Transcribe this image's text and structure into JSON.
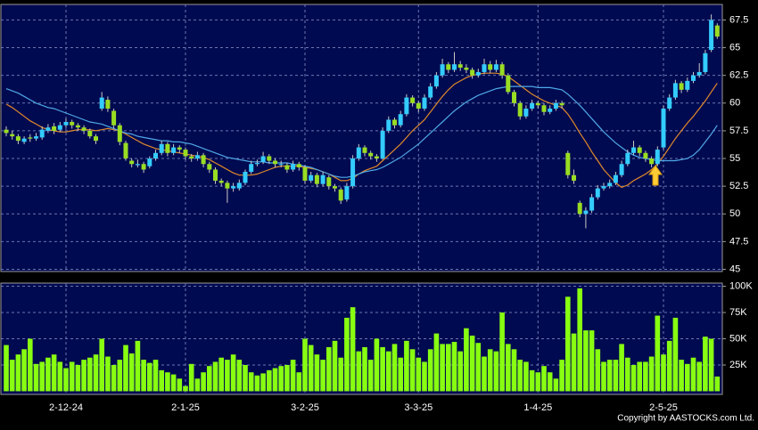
{
  "chart_data": [
    {
      "type": "candlestick",
      "up_color": "#33ccff",
      "down_color": "#99dd22",
      "grid": true,
      "ylim": [
        44.8,
        68.9
      ],
      "yticks": [
        45,
        47.5,
        50,
        52.5,
        55,
        57.5,
        60,
        62.5,
        65,
        67.5
      ],
      "categories": [
        null,
        null,
        null,
        null,
        null,
        null,
        null,
        null,
        null,
        null,
        "2-12-24",
        null,
        null,
        null,
        null,
        null,
        null,
        null,
        null,
        null,
        null,
        null,
        null,
        null,
        null,
        null,
        null,
        null,
        null,
        null,
        "2-1-25",
        null,
        null,
        null,
        null,
        null,
        null,
        null,
        null,
        null,
        null,
        null,
        null,
        null,
        null,
        null,
        null,
        null,
        null,
        null,
        "3-2-25",
        null,
        null,
        null,
        null,
        null,
        null,
        null,
        null,
        null,
        null,
        null,
        null,
        null,
        null,
        null,
        null,
        null,
        null,
        "3-3-25",
        null,
        null,
        null,
        null,
        null,
        null,
        null,
        null,
        null,
        null,
        null,
        null,
        null,
        null,
        null,
        null,
        null,
        null,
        null,
        "1-4-25",
        null,
        null,
        null,
        null,
        null,
        null,
        null,
        null,
        null,
        null,
        null,
        null,
        null,
        null,
        null,
        null,
        null,
        null,
        null,
        null,
        "2-5-25",
        null,
        null,
        null,
        null,
        null,
        null,
        null,
        null,
        null
      ],
      "ohlc": [
        [
          57.6,
          57.9,
          57.0,
          57.3
        ],
        [
          57.2,
          57.5,
          56.7,
          57.0
        ],
        [
          57.0,
          57.2,
          56.3,
          56.6
        ],
        [
          56.5,
          57.0,
          56.3,
          56.8
        ],
        [
          56.9,
          57.2,
          56.5,
          56.8
        ],
        [
          56.8,
          57.3,
          56.6,
          57.0
        ],
        [
          56.9,
          57.9,
          56.7,
          57.6
        ],
        [
          57.5,
          58.1,
          57.3,
          57.8
        ],
        [
          57.9,
          58.2,
          57.2,
          57.5
        ],
        [
          57.6,
          58.3,
          57.4,
          58.0
        ],
        [
          58.0,
          58.6,
          57.8,
          58.3
        ],
        [
          58.3,
          58.5,
          57.7,
          58.0
        ],
        [
          58.0,
          58.2,
          57.5,
          57.8
        ],
        [
          57.8,
          58.0,
          57.2,
          57.5
        ],
        [
          57.5,
          57.7,
          56.8,
          57.0
        ],
        [
          57.0,
          57.2,
          56.3,
          56.6
        ],
        [
          59.5,
          61.0,
          59.3,
          60.5
        ],
        [
          60.3,
          60.6,
          59.2,
          59.5
        ],
        [
          59.3,
          59.5,
          57.7,
          58.0
        ],
        [
          58.0,
          58.2,
          56.2,
          56.5
        ],
        [
          56.4,
          56.6,
          54.8,
          55.0
        ],
        [
          54.8,
          55.0,
          54.2,
          54.5
        ],
        [
          54.4,
          54.9,
          54.2,
          54.5
        ],
        [
          54.5,
          54.7,
          53.7,
          54.0
        ],
        [
          54.3,
          55.2,
          54.1,
          55.0
        ],
        [
          55.0,
          55.8,
          54.8,
          55.5
        ],
        [
          55.5,
          56.6,
          55.3,
          56.3
        ],
        [
          56.3,
          56.5,
          55.2,
          55.5
        ],
        [
          55.5,
          56.3,
          55.3,
          56.0
        ],
        [
          56.0,
          56.2,
          55.5,
          55.8
        ],
        [
          55.8,
          56.0,
          54.9,
          55.2
        ],
        [
          55.2,
          55.4,
          54.7,
          55.0
        ],
        [
          55.0,
          55.6,
          54.8,
          55.3
        ],
        [
          55.3,
          55.5,
          54.2,
          54.5
        ],
        [
          54.5,
          54.7,
          53.7,
          54.0
        ],
        [
          54.0,
          54.2,
          52.7,
          53.0
        ],
        [
          53.0,
          53.2,
          52.5,
          52.8
        ],
        [
          52.8,
          53.0,
          51.0,
          52.3
        ],
        [
          52.3,
          52.8,
          52.0,
          52.5
        ],
        [
          52.3,
          53.1,
          52.1,
          52.8
        ],
        [
          52.8,
          54.0,
          52.6,
          53.8
        ],
        [
          53.8,
          54.8,
          53.6,
          54.5
        ],
        [
          54.5,
          54.9,
          54.3,
          54.6
        ],
        [
          54.7,
          55.6,
          54.5,
          55.2
        ],
        [
          55.2,
          55.4,
          54.5,
          54.8
        ],
        [
          54.8,
          55.0,
          54.2,
          54.5
        ],
        [
          54.5,
          54.8,
          54.2,
          54.5
        ],
        [
          54.4,
          54.6,
          53.7,
          54.0
        ],
        [
          54.0,
          54.8,
          53.8,
          54.5
        ],
        [
          54.5,
          54.7,
          53.9,
          54.2
        ],
        [
          54.2,
          54.4,
          52.7,
          53.0
        ],
        [
          53.0,
          53.8,
          52.8,
          53.5
        ],
        [
          53.5,
          53.7,
          52.4,
          52.7
        ],
        [
          52.7,
          53.8,
          52.5,
          53.5
        ],
        [
          53.3,
          53.5,
          52.2,
          52.5
        ],
        [
          52.5,
          52.7,
          52.0,
          52.3
        ],
        [
          52.2,
          52.4,
          50.9,
          51.2
        ],
        [
          51.3,
          52.8,
          51.1,
          52.5
        ],
        [
          52.5,
          55.3,
          52.3,
          55.0
        ],
        [
          55.0,
          56.3,
          54.8,
          56.0
        ],
        [
          56.0,
          56.2,
          55.2,
          55.5
        ],
        [
          55.5,
          55.7,
          54.9,
          55.2
        ],
        [
          55.2,
          55.4,
          54.7,
          55.0
        ],
        [
          55.0,
          57.8,
          54.9,
          57.5
        ],
        [
          57.5,
          58.8,
          57.3,
          58.5
        ],
        [
          58.5,
          58.7,
          57.7,
          58.0
        ],
        [
          58.0,
          59.3,
          57.8,
          59.0
        ],
        [
          59.0,
          60.8,
          58.8,
          60.5
        ],
        [
          60.5,
          60.7,
          59.7,
          60.0
        ],
        [
          60.0,
          60.2,
          59.2,
          59.5
        ],
        [
          59.5,
          60.8,
          59.3,
          60.5
        ],
        [
          60.5,
          61.8,
          60.3,
          61.5
        ],
        [
          61.5,
          62.8,
          61.3,
          62.5
        ],
        [
          62.5,
          64.0,
          62.3,
          63.5
        ],
        [
          63.5,
          63.7,
          62.7,
          63.0
        ],
        [
          63.0,
          64.6,
          62.8,
          63.5
        ],
        [
          63.5,
          63.8,
          62.9,
          63.2
        ],
        [
          63.2,
          63.5,
          62.7,
          63.0
        ],
        [
          63.0,
          63.2,
          62.2,
          62.5
        ],
        [
          62.5,
          63.1,
          62.3,
          62.8
        ],
        [
          62.8,
          64.0,
          62.6,
          63.5
        ],
        [
          63.5,
          63.8,
          62.7,
          63.0
        ],
        [
          63.0,
          63.9,
          62.8,
          63.5
        ],
        [
          63.5,
          63.7,
          62.2,
          62.5
        ],
        [
          62.5,
          62.7,
          60.8,
          61.0
        ],
        [
          61.0,
          61.2,
          59.7,
          60.0
        ],
        [
          60.0,
          60.2,
          58.5,
          58.8
        ],
        [
          58.8,
          59.8,
          58.6,
          59.5
        ],
        [
          59.5,
          60.3,
          59.3,
          60.0
        ],
        [
          60.0,
          60.2,
          59.5,
          59.8
        ],
        [
          59.8,
          60.0,
          58.9,
          59.2
        ],
        [
          59.2,
          59.8,
          59.0,
          59.5
        ],
        [
          59.5,
          60.3,
          59.3,
          60.0
        ],
        [
          60.0,
          60.2,
          59.5,
          59.8
        ],
        [
          55.5,
          55.7,
          53.2,
          53.5
        ],
        [
          53.5,
          54.0,
          52.7,
          53.0
        ],
        [
          51.0,
          51.2,
          49.7,
          50.0
        ],
        [
          50.0,
          50.6,
          48.7,
          50.3
        ],
        [
          50.3,
          51.8,
          50.1,
          51.5
        ],
        [
          51.5,
          52.6,
          51.3,
          52.3
        ],
        [
          52.3,
          52.8,
          52.1,
          52.5
        ],
        [
          52.5,
          53.1,
          52.3,
          52.8
        ],
        [
          52.8,
          53.8,
          52.6,
          53.5
        ],
        [
          53.5,
          54.8,
          53.3,
          54.5
        ],
        [
          54.5,
          55.8,
          54.3,
          55.5
        ],
        [
          55.5,
          56.6,
          55.3,
          56.0
        ],
        [
          56.0,
          56.2,
          55.2,
          55.5
        ],
        [
          55.5,
          55.7,
          54.7,
          55.0
        ],
        [
          55.0,
          55.2,
          54.2,
          54.5
        ],
        [
          54.5,
          56.1,
          54.3,
          55.8
        ],
        [
          56.0,
          59.8,
          55.8,
          59.5
        ],
        [
          59.5,
          60.8,
          59.3,
          60.5
        ],
        [
          60.5,
          62.1,
          60.3,
          61.8
        ],
        [
          61.8,
          62.0,
          60.9,
          61.2
        ],
        [
          61.2,
          62.3,
          61.0,
          62.0
        ],
        [
          62.0,
          62.8,
          61.8,
          62.5
        ],
        [
          62.5,
          63.6,
          62.3,
          62.8
        ],
        [
          62.8,
          64.8,
          62.6,
          64.5
        ],
        [
          64.8,
          68.0,
          64.6,
          67.5
        ],
        [
          67.0,
          67.2,
          65.8,
          66.0
        ]
      ],
      "series": [
        {
          "color": "#e0892a",
          "values": [
            59.9,
            59.6,
            59.2,
            58.8,
            58.4,
            58.1,
            57.8,
            57.6,
            57.5,
            57.4,
            57.4,
            57.5,
            57.6,
            57.6,
            57.6,
            57.5,
            57.6,
            57.7,
            57.6,
            57.5,
            57.2,
            56.9,
            56.6,
            56.3,
            56.1,
            55.9,
            55.8,
            55.7,
            55.6,
            55.5,
            55.4,
            55.3,
            55.2,
            55.1,
            54.9,
            54.6,
            54.3,
            54.0,
            53.7,
            53.5,
            53.5,
            53.5,
            53.6,
            53.8,
            54.0,
            54.2,
            54.3,
            54.3,
            54.3,
            54.3,
            54.2,
            54.1,
            54.0,
            53.8,
            53.6,
            53.3,
            53.0,
            53.0,
            53.2,
            53.6,
            53.9,
            54.1,
            54.3,
            54.8,
            55.3,
            55.8,
            56.3,
            56.9,
            57.5,
            58.0,
            58.5,
            59.2,
            59.9,
            60.6,
            61.2,
            61.7,
            62.0,
            62.3,
            62.5,
            62.6,
            62.7,
            62.7,
            62.7,
            62.6,
            62.4,
            62.0,
            61.6,
            61.2,
            60.8,
            60.5,
            60.2,
            60.0,
            59.8,
            59.6,
            59.0,
            58.2,
            57.3,
            56.5,
            55.6,
            54.8,
            54.0,
            53.4,
            52.8,
            52.4,
            52.6,
            53.0,
            53.3,
            53.6,
            54.0,
            54.5,
            55.2,
            56.0,
            56.8,
            57.5,
            58.2,
            58.8,
            59.5,
            60.2,
            61.0,
            61.8
          ]
        },
        {
          "color": "#4fa8e8",
          "values": [
            61.3,
            61.1,
            60.9,
            60.6,
            60.3,
            60.0,
            59.8,
            59.6,
            59.5,
            59.3,
            59.1,
            58.9,
            58.7,
            58.5,
            58.3,
            58.2,
            58.1,
            57.9,
            57.7,
            57.5,
            57.3,
            57.2,
            57.0,
            56.9,
            56.8,
            56.7,
            56.6,
            56.6,
            56.5,
            56.5,
            56.4,
            56.3,
            56.1,
            55.9,
            55.7,
            55.5,
            55.3,
            55.1,
            55.0,
            54.9,
            54.8,
            54.7,
            54.7,
            54.7,
            54.6,
            54.6,
            54.6,
            54.6,
            54.5,
            54.4,
            54.3,
            54.2,
            54.0,
            53.8,
            53.6,
            53.4,
            53.3,
            53.3,
            53.4,
            53.6,
            53.8,
            53.9,
            54.0,
            54.2,
            54.5,
            54.8,
            55.1,
            55.5,
            55.9,
            56.3,
            56.8,
            57.3,
            57.8,
            58.3,
            58.8,
            59.3,
            59.7,
            60.1,
            60.4,
            60.7,
            60.9,
            61.1,
            61.3,
            61.4,
            61.5,
            61.5,
            61.5,
            61.5,
            61.5,
            61.4,
            61.4,
            61.4,
            61.3,
            61.2,
            60.8,
            60.3,
            59.8,
            59.2,
            58.6,
            58.0,
            57.4,
            56.9,
            56.4,
            56.0,
            55.6,
            55.3,
            55.1,
            55.0,
            54.9,
            54.8,
            54.8,
            54.8,
            54.8,
            54.9,
            55.0,
            55.3,
            55.8,
            56.5,
            57.2,
            58.0
          ]
        }
      ]
    },
    {
      "type": "bar",
      "color": "#88ff11",
      "grid": true,
      "ylim": [
        -3000,
        103000
      ],
      "yticks": [
        {
          "value": 25000,
          "label": "25K"
        },
        {
          "value": 50000,
          "label": "50K"
        },
        {
          "value": 75000,
          "label": "75K"
        },
        {
          "value": 100000,
          "label": "100K"
        }
      ],
      "values": [
        44000,
        30000,
        35000,
        40000,
        50000,
        26000,
        28000,
        32000,
        35000,
        28000,
        22000,
        28000,
        25000,
        30000,
        32000,
        35000,
        50000,
        33000,
        25000,
        30000,
        44000,
        36000,
        48000,
        30000,
        27000,
        30000,
        20000,
        18000,
        16000,
        12000,
        5000,
        26000,
        12000,
        18000,
        24000,
        28000,
        32000,
        30000,
        35000,
        30000,
        25000,
        18000,
        15000,
        17000,
        20000,
        22000,
        24000,
        25000,
        30000,
        18000,
        50000,
        44000,
        35000,
        30000,
        42000,
        48000,
        32000,
        70000,
        80000,
        38000,
        42000,
        30000,
        50000,
        42000,
        38000,
        45000,
        32000,
        48000,
        40000,
        32000,
        28000,
        40000,
        55000,
        45000,
        45000,
        47000,
        38000,
        60000,
        53000,
        46000,
        33000,
        40000,
        38000,
        75000,
        45000,
        40000,
        30000,
        28000,
        20000,
        18000,
        24000,
        18000,
        12000,
        30000,
        90000,
        55000,
        98000,
        58000,
        58000,
        40000,
        28000,
        30000,
        30000,
        45000,
        32000,
        25000,
        28000,
        28000,
        33000,
        72000,
        35000,
        48000,
        70000,
        30000,
        26000,
        32000,
        28000,
        52000,
        50000,
        14000
      ]
    }
  ],
  "footer": "Copyright by AASTOCKS.com Ltd."
}
